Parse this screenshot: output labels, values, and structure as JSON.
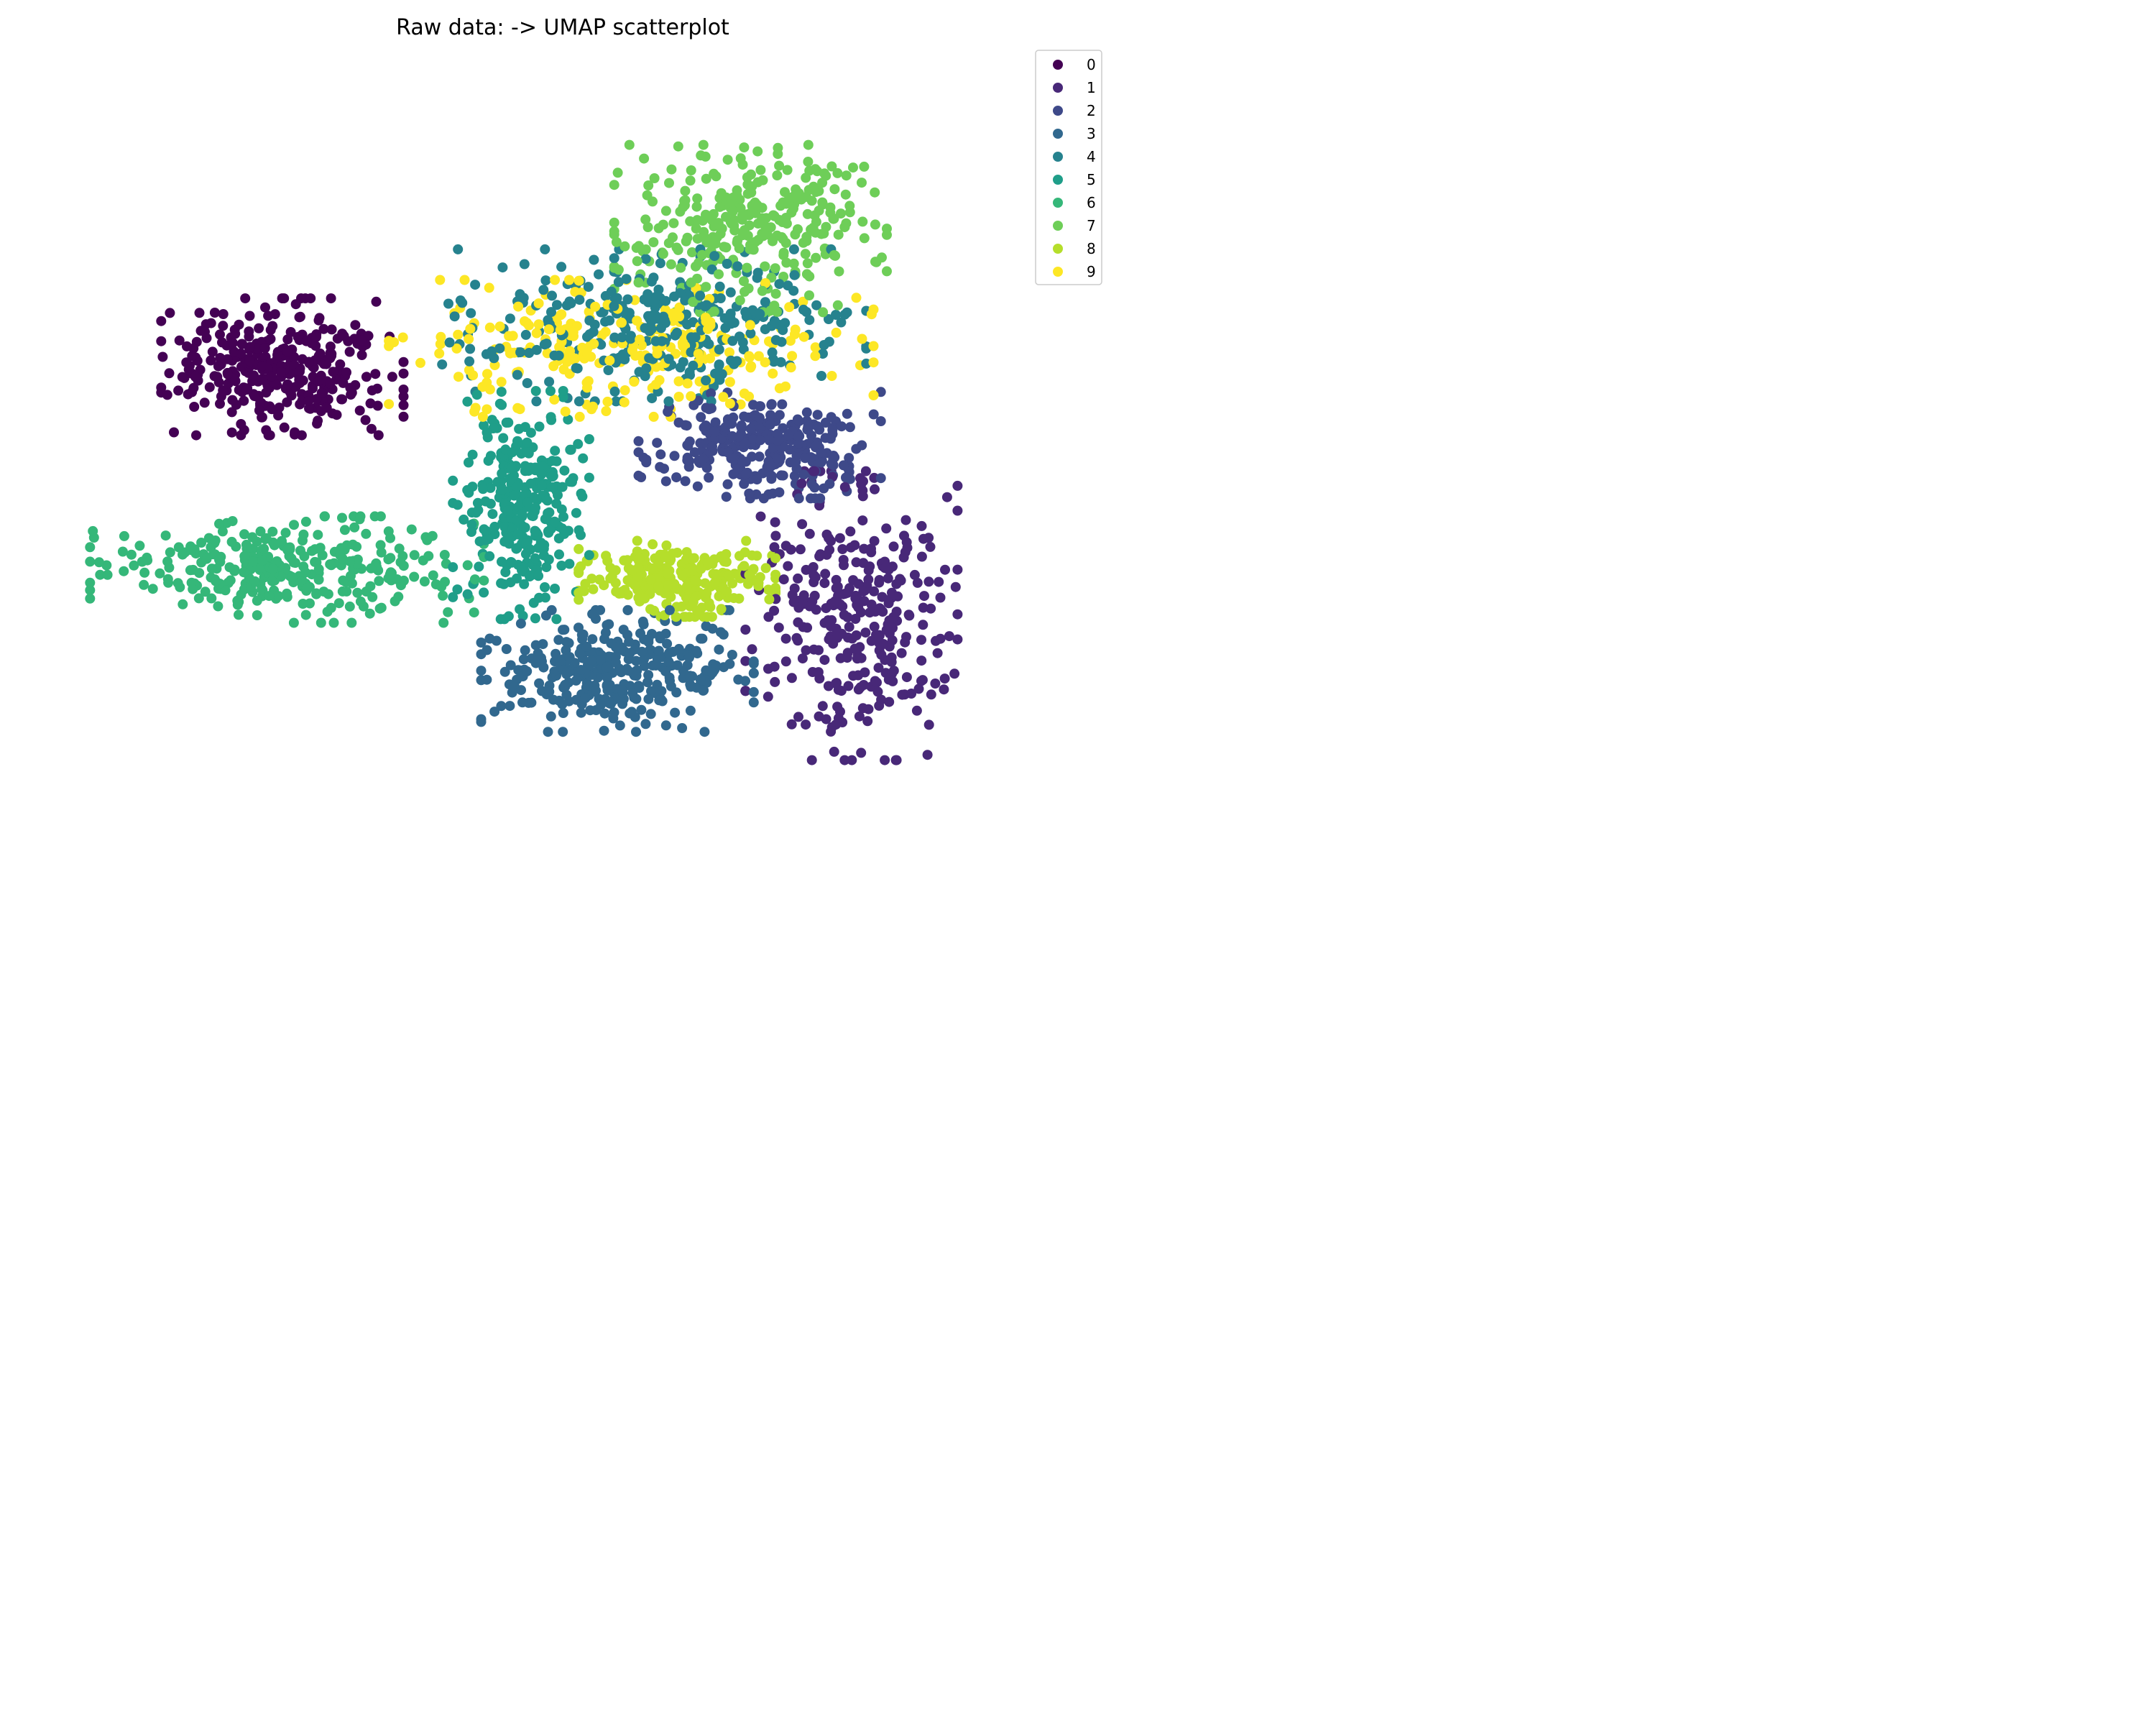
{
  "chart_data": {
    "type": "scatter",
    "title": "Raw data: -> UMAP scatterplot",
    "xlabel": "",
    "ylabel": "",
    "axes_visible": false,
    "grid": false,
    "legend_position": "top-right",
    "marker_size_hint": "medium",
    "categories": [
      "0",
      "1",
      "2",
      "3",
      "4",
      "5",
      "6",
      "7",
      "8",
      "9"
    ],
    "colors": [
      "#440154",
      "#482878",
      "#3e4989",
      "#31688e",
      "#26828e",
      "#1f9e89",
      "#35b779",
      "#6ece58",
      "#b5de2b",
      "#fde725"
    ],
    "clusters": [
      {
        "label": "0",
        "center": [
          -0.71,
          0.26
        ],
        "spread": [
          0.16,
          0.09
        ],
        "count": 330
      },
      {
        "label": "1",
        "center": [
          0.53,
          -0.28
        ],
        "spread": [
          0.14,
          0.19
        ],
        "count": 320
      },
      {
        "label": "2",
        "center": [
          0.33,
          0.09
        ],
        "spread": [
          0.16,
          0.07
        ],
        "count": 310
      },
      {
        "label": "3",
        "center": [
          0.02,
          -0.4
        ],
        "spread": [
          0.18,
          0.08
        ],
        "count": 330
      },
      {
        "label": "4",
        "center": [
          0.1,
          0.35
        ],
        "spread": [
          0.28,
          0.1
        ],
        "count": 330
      },
      {
        "label": "5",
        "center": [
          -0.19,
          -0.04
        ],
        "spread": [
          0.09,
          0.15
        ],
        "count": 300
      },
      {
        "label": "6",
        "center": [
          -0.7,
          -0.18
        ],
        "spread": [
          0.26,
          0.07
        ],
        "count": 320
      },
      {
        "label": "7",
        "center": [
          0.31,
          0.56
        ],
        "spread": [
          0.18,
          0.11
        ],
        "count": 310
      },
      {
        "label": "8",
        "center": [
          0.15,
          -0.2
        ],
        "spread": [
          0.13,
          0.05
        ],
        "count": 260
      },
      {
        "label": "9",
        "center": [
          0.05,
          0.3
        ],
        "spread": [
          0.32,
          0.09
        ],
        "count": 260
      }
    ],
    "xlim": [
      -1.2,
      1.0
    ],
    "ylim": [
      -0.8,
      0.9
    ]
  }
}
